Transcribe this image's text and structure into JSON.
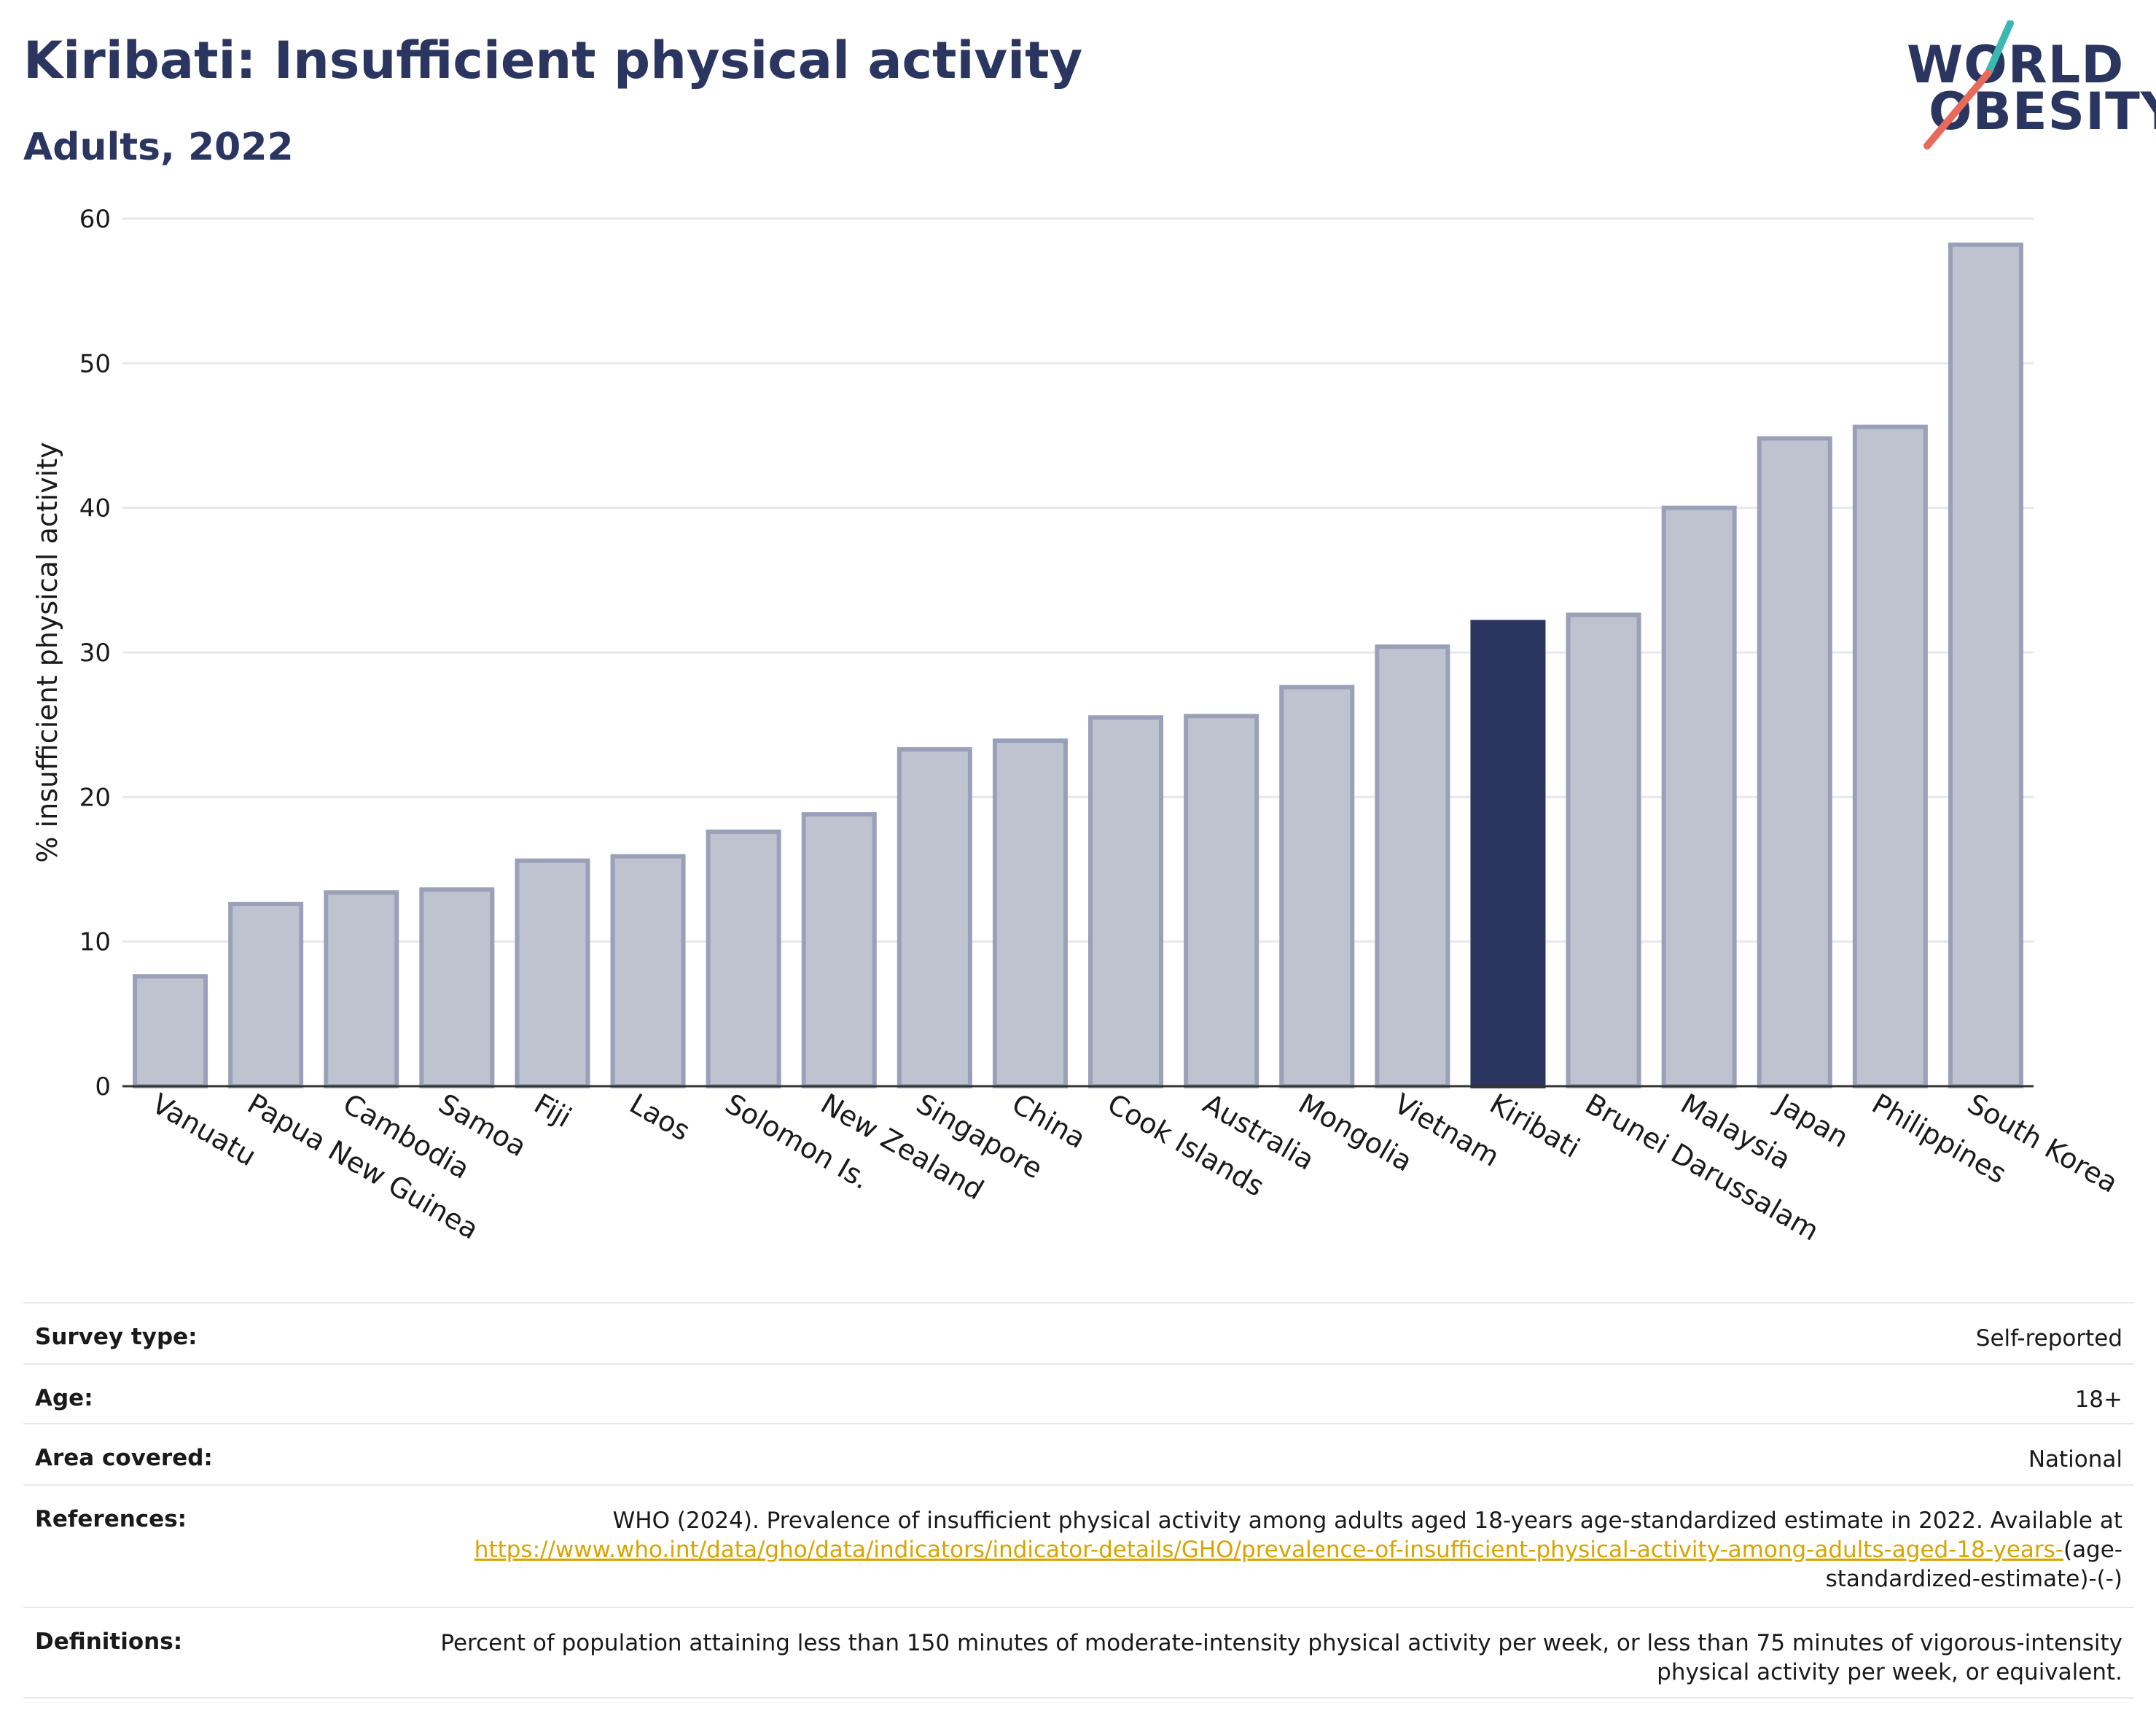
{
  "header": {
    "title": "Kiribati: Insufficient physical activity",
    "subtitle": "Adults, 2022"
  },
  "logo": {
    "line1": "WORLD",
    "line2": "OBESITY",
    "accent_teal": "#3bb8b0",
    "accent_red": "#e76a5a"
  },
  "chart_data": {
    "type": "bar",
    "categories": [
      "Vanuatu",
      "Papua New Guinea",
      "Cambodia",
      "Samoa",
      "Fiji",
      "Laos",
      "Solomon Is.",
      "New Zealand",
      "Singapore",
      "China",
      "Cook Islands",
      "Australia",
      "Mongolia",
      "Vietnam",
      "Kiribati",
      "Brunei Darussalam",
      "Malaysia",
      "Japan",
      "Philippines",
      "South Korea"
    ],
    "values": [
      7.6,
      12.6,
      13.4,
      13.6,
      15.6,
      15.9,
      17.6,
      18.8,
      23.3,
      23.9,
      25.5,
      25.6,
      27.6,
      30.4,
      32.1,
      32.6,
      40.0,
      44.8,
      45.6,
      58.2
    ],
    "highlight": "Kiribati",
    "ylabel": "% insufficient physical activity",
    "ylim": [
      0,
      60
    ],
    "yticks": [
      0,
      10,
      20,
      30,
      40,
      50,
      60
    ],
    "grid": true,
    "colors": {
      "bar": "#bfc2cf",
      "bar_edge": "#9aa0b8",
      "highlight": "#2a3560"
    }
  },
  "meta": {
    "survey_label": "Survey type:",
    "survey_value": "Self-reported",
    "age_label": "Age:",
    "age_value": "18+",
    "area_label": "Area covered:",
    "area_value": "National",
    "references_label": "References:",
    "references_text": "WHO (2024). Prevalence of insufficient physical activity among adults aged 18-years age-standardized estimate in 2022. Available at",
    "references_link": "https://www.who.int/data/gho/data/indicators/indicator-details/GHO/prevalence-of-insufficient-physical-activity-among-adults-aged-18-years-",
    "references_tail": "(age-standardized-estimate)-(-)",
    "definitions_label": "Definitions:",
    "definitions_text": "Percent of population attaining less than 150 minutes of moderate-intensity physical activity per week, or less than 75 minutes of vigorous-intensity physical activity per week, or equivalent."
  }
}
